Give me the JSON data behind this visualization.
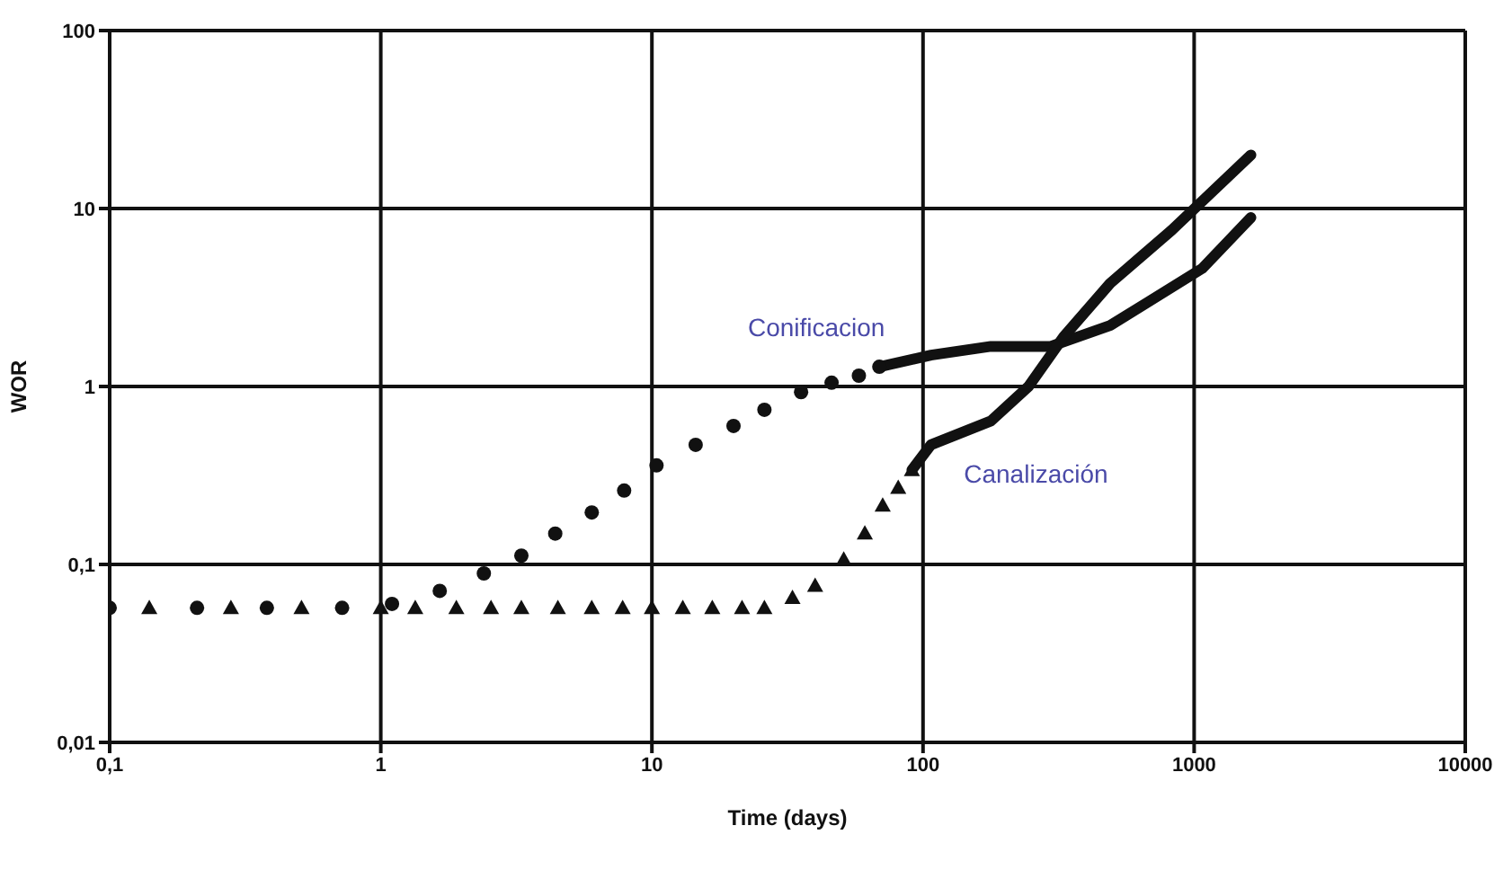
{
  "chart_data": {
    "type": "scatter",
    "xlabel": "Time (days)",
    "ylabel": "WOR",
    "log": "xy",
    "grid": true,
    "xlim": [
      0.1,
      10000
    ],
    "xticks": [
      {
        "value": 0.1,
        "label": "0,1"
      },
      1,
      10,
      100,
      1000,
      10000
    ],
    "ylim": [
      0.01,
      100
    ],
    "yticks": [
      {
        "value": 0.01,
        "label": "0,01"
      },
      {
        "value": 0.1,
        "label": "0,1"
      },
      1,
      10,
      100
    ],
    "series": [
      {
        "marker": "circle",
        "color": "#111111",
        "x": [
          0.1,
          0.21,
          0.38,
          0.72,
          1.1,
          1.65,
          2.4,
          3.3,
          4.4,
          6.0,
          7.9,
          10.4,
          14.5,
          20,
          26,
          35.5,
          46,
          58,
          69
        ],
        "values": [
          0.057,
          0.057,
          0.057,
          0.057,
          0.06,
          0.071,
          0.089,
          0.112,
          0.149,
          0.196,
          0.26,
          0.36,
          0.47,
          0.6,
          0.74,
          0.93,
          1.05,
          1.15,
          1.29
        ]
      },
      {
        "type": "line",
        "name": "Conificacion",
        "marker": "none",
        "line_style": "solid",
        "color": "#111111",
        "x": [
          69,
          107,
          178,
          296,
          490,
          1070,
          1620
        ],
        "values": [
          1.29,
          1.5,
          1.68,
          1.68,
          2.2,
          4.6,
          8.9
        ]
      },
      {
        "marker": "triangle",
        "color": "#111111",
        "x": [
          0.14,
          0.28,
          0.51,
          1.0,
          1.34,
          1.9,
          2.55,
          3.3,
          4.5,
          6.0,
          7.8,
          10,
          13,
          16.7,
          21.5,
          26,
          33,
          40,
          51,
          61,
          71,
          81,
          91
        ],
        "values": [
          0.057,
          0.057,
          0.057,
          0.057,
          0.057,
          0.057,
          0.057,
          0.057,
          0.057,
          0.057,
          0.057,
          0.057,
          0.057,
          0.057,
          0.057,
          0.057,
          0.065,
          0.076,
          0.107,
          0.15,
          0.215,
          0.27,
          0.34
        ]
      },
      {
        "type": "line",
        "name": "Canalización",
        "marker": "none",
        "line_style": "solid",
        "color": "#111111",
        "x": [
          91,
          107,
          178,
          245,
          330,
          490,
          830,
          1620
        ],
        "values": [
          0.34,
          0.47,
          0.64,
          1.0,
          1.9,
          3.8,
          7.6,
          20
        ]
      }
    ]
  }
}
